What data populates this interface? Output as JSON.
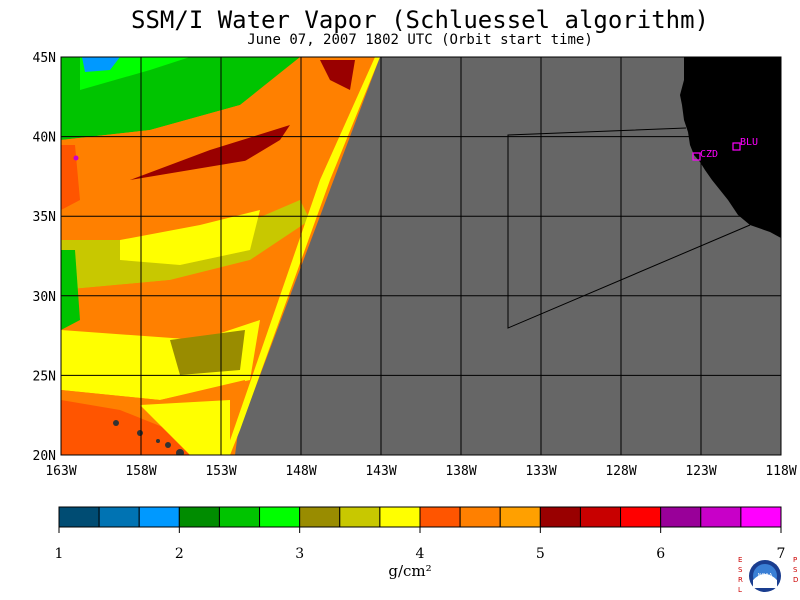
{
  "title": "SSM/I Water Vapor (Schluessel algorithm)",
  "subtitle": "June 07, 2007  1802 UTC  (Orbit start time)",
  "map": {
    "lat_labels": [
      "45N",
      "40N",
      "35N",
      "30N",
      "25N",
      "20N"
    ],
    "lon_labels": [
      "163W",
      "158W",
      "153W",
      "148W",
      "143W",
      "138W",
      "133W",
      "128W",
      "123W",
      "118W"
    ],
    "stations": [
      {
        "label": "CZD"
      },
      {
        "label": "BLU"
      }
    ],
    "colors": {
      "nodata": "#666666",
      "land": "#000000",
      "grid": "#000000",
      "station": "#ff00ff"
    }
  },
  "colorbar": {
    "colors": [
      "#004c73",
      "#0073b3",
      "#0099ff",
      "#008c00",
      "#00c400",
      "#00ff00",
      "#998c00",
      "#c8c800",
      "#ffff00",
      "#ff5500",
      "#ff8000",
      "#ffa000",
      "#990000",
      "#c80000",
      "#ff0000",
      "#990099",
      "#c800c8",
      "#ff00ff"
    ],
    "tick_labels": [
      "1",
      "2",
      "3",
      "4",
      "5",
      "6",
      "7"
    ],
    "units": "g/cm²"
  },
  "logo_text": {
    "left": "ESRL",
    "right": "PSD",
    "center": "NOAA"
  }
}
